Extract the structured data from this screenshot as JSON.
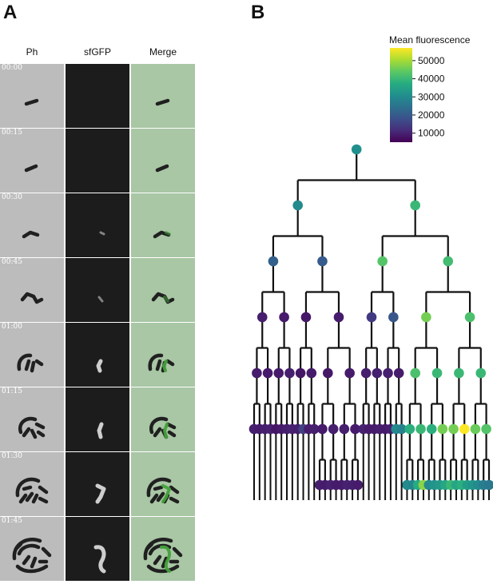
{
  "panels": {
    "a_label": "A",
    "b_label": "B"
  },
  "panel_a": {
    "columns": [
      "Ph",
      "sfGFP",
      "Merge"
    ],
    "timestamps": [
      "00:00",
      "00:15",
      "00:30",
      "00:45",
      "01:00",
      "01:15",
      "01:30",
      "01:45"
    ]
  },
  "colors": {
    "viridis": [
      "#440154",
      "#472c7a",
      "#3b518b",
      "#2c718e",
      "#21908d",
      "#27ad81",
      "#5cc863",
      "#aadc32",
      "#fde725"
    ],
    "edge": "#111111",
    "ph_cell": "#202020",
    "gfp_signal": "#d8d8d8",
    "merge_signal": "#43a13a"
  },
  "chart_data": {
    "type": "tree",
    "colorbar": {
      "title": "Mean fluorescence",
      "ticks": [
        10000,
        20000,
        30000,
        40000,
        50000
      ],
      "tick_labels": [
        "10000",
        "20000",
        "30000",
        "40000",
        "50000"
      ],
      "min": 5000,
      "max": 57000
    },
    "root": {
      "v": 31000,
      "children": [
        {
          "v": 30000,
          "children": [
            {
              "v": 21000,
              "children": [
                {
                  "v": 9500,
                  "children": [
                    {
                      "v": 9000,
                      "children": [
                        {
                          "v": 9500
                        },
                        {
                          "v": 9000
                        }
                      ]
                    },
                    {
                      "v": 9000,
                      "children": [
                        {
                          "v": 9500
                        },
                        {
                          "v": 10000
                        }
                      ]
                    }
                  ]
                },
                {
                  "v": 9000,
                  "children": [
                    {
                      "v": 9000,
                      "children": [
                        {
                          "v": 8000
                        },
                        {
                          "v": 9000
                        }
                      ]
                    },
                    {
                      "v": 9500,
                      "children": [
                        {
                          "v": 9500
                        },
                        {
                          "v": 10000
                        }
                      ]
                    }
                  ]
                }
              ]
            },
            {
              "v": 20000,
              "children": [
                {
                  "v": 8500,
                  "children": [
                    {
                      "v": 8000,
                      "children": [
                        {
                          "v": 9500
                        },
                        {
                          "v": 15000
                        }
                      ]
                    },
                    {
                      "v": 9000,
                      "children": [
                        {
                          "v": 9000
                        },
                        {
                          "v": 9500
                        }
                      ]
                    }
                  ]
                },
                {
                  "v": 9000,
                  "children": [
                    {
                      "v": 8500,
                      "children": [
                        {
                          "v": 9000,
                          "children": [
                            {
                              "v": 9500
                            },
                            {
                              "v": 9000
                            }
                          ]
                        },
                        {
                          "v": 9500,
                          "children": [
                            {
                              "v": 10000
                            },
                            {
                              "v": 9000
                            }
                          ]
                        }
                      ]
                    },
                    {
                      "v": 9000,
                      "children": [
                        {
                          "v": 9500,
                          "children": [
                            {
                              "v": 9000
                            },
                            {
                              "v": 10000
                            }
                          ]
                        },
                        {
                          "v": 9000,
                          "children": [
                            {
                              "v": 9500
                            },
                            {
                              "v": 9000
                            }
                          ]
                        }
                      ]
                    }
                  ]
                }
              ]
            }
          ]
        },
        {
          "v": 40000,
          "children": [
            {
              "v": 43000,
              "children": [
                {
                  "v": 14000,
                  "children": [
                    {
                      "v": 9500,
                      "children": [
                        {
                          "v": 10000
                        },
                        {
                          "v": 9000
                        }
                      ]
                    },
                    {
                      "v": 9500,
                      "children": [
                        {
                          "v": 9000
                        },
                        {
                          "v": 9500
                        }
                      ]
                    }
                  ]
                },
                {
                  "v": 19000,
                  "children": [
                    {
                      "v": 9500,
                      "children": [
                        {
                          "v": 9000
                        },
                        {
                          "v": 9500
                        }
                      ]
                    },
                    {
                      "v": 9000,
                      "children": [
                        {
                          "v": 30000
                        },
                        {
                          "v": 28000
                        }
                      ]
                    }
                  ]
                }
              ]
            },
            {
              "v": 41000,
              "children": [
                {
                  "v": 46000,
                  "children": [
                    {
                      "v": 42000,
                      "children": [
                        {
                          "v": 38000,
                          "children": [
                            {
                              "v": 30000
                            },
                            {
                              "v": 29000
                            }
                          ]
                        },
                        {
                          "v": 40000,
                          "children": [
                            {
                              "v": 37000
                            },
                            {
                              "v": 48000
                            }
                          ]
                        }
                      ]
                    },
                    {
                      "v": 40000,
                      "children": [
                        {
                          "v": 38000,
                          "children": [
                            {
                              "v": 30000
                            },
                            {
                              "v": 32000
                            }
                          ]
                        },
                        {
                          "v": 46000,
                          "children": [
                            {
                              "v": 33000
                            },
                            {
                              "v": 36000
                            }
                          ]
                        }
                      ]
                    }
                  ]
                },
                {
                  "v": 42000,
                  "children": [
                    {
                      "v": 40000,
                      "children": [
                        {
                          "v": 46000,
                          "children": [
                            {
                              "v": 40000
                            },
                            {
                              "v": 36000
                            }
                          ]
                        },
                        {
                          "v": 57000,
                          "children": [
                            {
                              "v": 38000
                            },
                            {
                              "v": 34000
                            }
                          ]
                        }
                      ]
                    },
                    {
                      "v": 40000,
                      "children": [
                        {
                          "v": 45000,
                          "children": [
                            {
                              "v": 32000
                            },
                            {
                              "v": 30000
                            }
                          ]
                        },
                        {
                          "v": 43000,
                          "children": [
                            {
                              "v": 27000
                            },
                            {
                              "v": 26000
                            }
                          ]
                        }
                      ]
                    }
                  ]
                }
              ]
            }
          ]
        }
      ]
    }
  }
}
